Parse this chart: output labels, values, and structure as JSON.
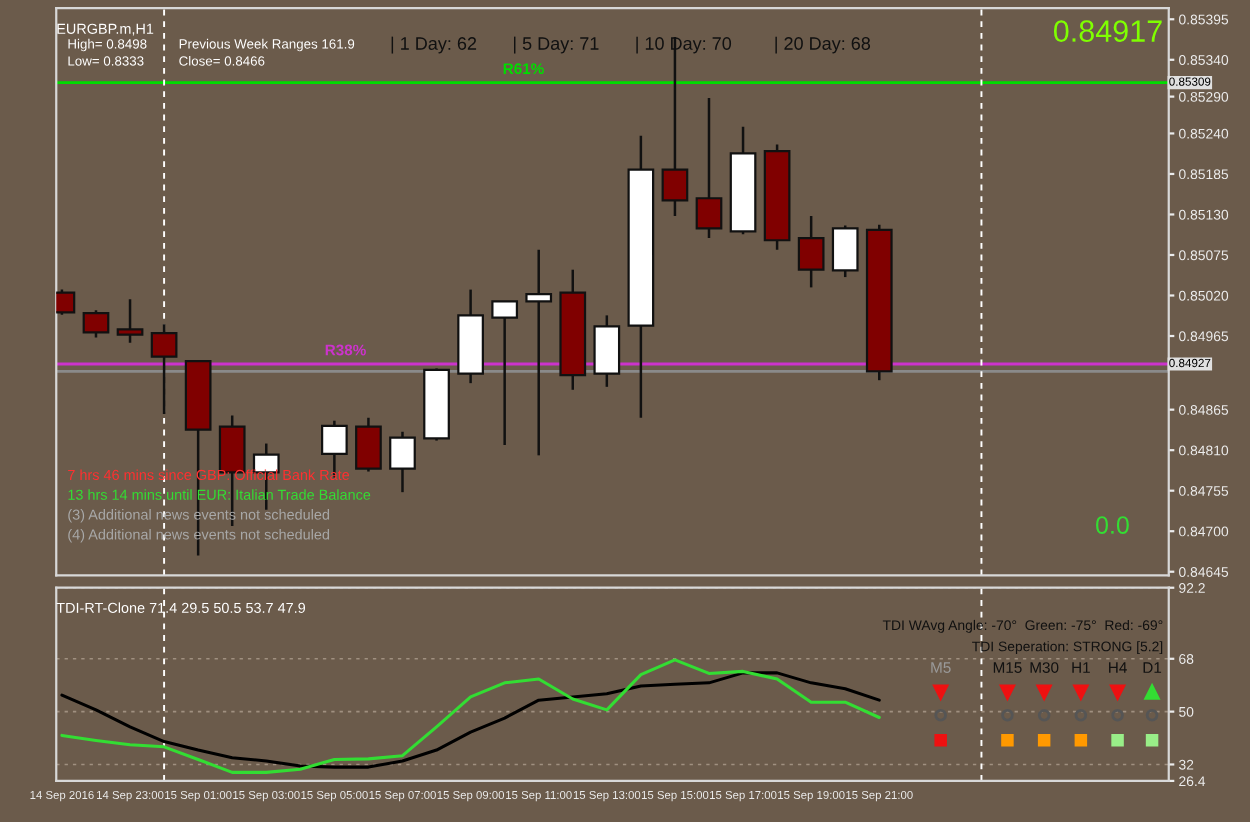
{
  "chart_data": [
    {
      "type": "candlestick",
      "title": "EURGBP.m,H1",
      "x": [
        "2016-09-14T21:00",
        "2016-09-14T22:00",
        "2016-09-14T23:00",
        "2016-09-15T00:00",
        "2016-09-15T01:00",
        "2016-09-15T02:00",
        "2016-09-15T03:00",
        "2016-09-15T05:00",
        "2016-09-15T06:00",
        "2016-09-15T07:00",
        "2016-09-15T08:00",
        "2016-09-15T09:00",
        "2016-09-15T10:00",
        "2016-09-15T11:00",
        "2016-09-15T12:00",
        "2016-09-15T13:00",
        "2016-09-15T14:00",
        "2016-09-15T15:00",
        "2016-09-15T16:00",
        "2016-09-15T17:00",
        "2016-09-15T18:00",
        "2016-09-15T19:00",
        "2016-09-15T20:00",
        "2016-09-15T21:00"
      ],
      "ohlc": [
        [
          0.85024,
          0.85028,
          0.84994,
          0.84997
        ],
        [
          0.84996,
          0.85,
          0.84963,
          0.8497
        ],
        [
          0.84974,
          0.85015,
          0.84956,
          0.84967
        ],
        [
          0.84969,
          0.84981,
          0.84859,
          0.84937
        ],
        [
          0.84931,
          0.84931,
          0.84667,
          0.84838
        ],
        [
          0.84842,
          0.84857,
          0.84707,
          0.8478
        ],
        [
          0.8478,
          0.84819,
          0.84729,
          0.84804
        ],
        [
          0.84805,
          0.8485,
          0.84773,
          0.84843
        ],
        [
          0.84842,
          0.84854,
          0.84781,
          0.84785
        ],
        [
          0.84785,
          0.84835,
          0.84753,
          0.84827
        ],
        [
          0.84826,
          0.84921,
          0.84823,
          0.84919
        ],
        [
          0.84914,
          0.85028,
          0.84901,
          0.84993
        ],
        [
          0.8499,
          0.85012,
          0.84817,
          0.85012
        ],
        [
          0.85012,
          0.85082,
          0.84803,
          0.85022
        ],
        [
          0.85024,
          0.85055,
          0.84892,
          0.84912
        ],
        [
          0.84914,
          0.84993,
          0.84896,
          0.84978
        ],
        [
          0.84979,
          0.85237,
          0.84854,
          0.85191
        ],
        [
          0.85191,
          0.85371,
          0.85128,
          0.85149
        ],
        [
          0.85152,
          0.85288,
          0.85098,
          0.85111
        ],
        [
          0.85107,
          0.85249,
          0.85103,
          0.85213
        ],
        [
          0.85216,
          0.85225,
          0.85082,
          0.85095
        ],
        [
          0.85098,
          0.85128,
          0.85031,
          0.85055
        ],
        [
          0.85054,
          0.85115,
          0.85045,
          0.85111
        ],
        [
          0.85109,
          0.85116,
          0.84905,
          0.84917
        ]
      ],
      "colors": [
        "#800000",
        "#800000",
        "#800000",
        "#800000",
        "#800000",
        "#800000",
        "#ffffff",
        "#ffffff",
        "#800000",
        "#ffffff",
        "#ffffff",
        "#ffffff",
        "#ffffff",
        "#ffffff",
        "#800000",
        "#ffffff",
        "#ffffff",
        "#800000",
        "#800000",
        "#ffffff",
        "#800000",
        "#800000",
        "#ffffff",
        "#800000"
      ],
      "xlim": [
        "2016-09-14T20:50",
        "2016-09-16T05:30"
      ],
      "ylim": [
        0.8464,
        0.8541
      ],
      "yticks": [
        0.85395,
        {
          "value": 0.8534,
          "label": "0.85340"
        },
        {
          "value": 0.8529,
          "label": "0.85290"
        },
        {
          "value": 0.8524,
          "label": "0.85240"
        },
        0.85185,
        {
          "value": 0.8513,
          "label": "0.85130"
        },
        0.85075,
        {
          "value": 0.8502,
          "label": "0.85020"
        },
        0.84965,
        0.84865,
        {
          "value": 0.8481,
          "label": "0.84810"
        },
        0.84755,
        {
          "value": 0.847,
          "label": "0.84700"
        },
        0.84645
      ],
      "tick_labels": "y",
      "ref_lines": [
        {
          "axis": "y",
          "value": 0.85309,
          "label": "R61%",
          "color": "#00dd00"
        },
        {
          "axis": "y",
          "value": 0.84927,
          "label": "R38%",
          "color": "#cc33cc"
        },
        {
          "axis": "y",
          "value": 0.84917,
          "color": "#8a8a8a"
        },
        {
          "axis": "x",
          "value": "2016-09-15T00:00",
          "color": "#ffffff",
          "line_style": "dashed"
        },
        {
          "axis": "x",
          "value": "2016-09-16T00:00",
          "color": "#ffffff",
          "line_style": "dashed"
        }
      ],
      "annotations": [
        "High= 0.8498",
        "Previous Week Ranges 161.9",
        "Low= 0.8333",
        "Close= 0.8466",
        "| 1 Day: 62",
        "| 5 Day: 71",
        "| 10 Day: 70",
        "| 20 Day: 68",
        "0.84917",
        "0.0",
        "7 hrs 46 mins since GBP: Official Bank Rate",
        "13 hrs 14 mins until EUR: Italian Trade Balance",
        "(3) Additional news events not scheduled",
        "(4) Additional news events not scheduled",
        {
          "text": "0.85309",
          "x": "2016-09-16T05:30",
          "y": 0.85309
        },
        {
          "text": "0.84927",
          "x": "2016-09-16T05:30",
          "y": 0.84927
        }
      ]
    },
    {
      "type": "line",
      "title": "TDI-RT-Clone 71.4 29.5 50.5 53.7 47.9",
      "x": [
        "2016-09-14T21:00",
        "2016-09-14T22:00",
        "2016-09-14T23:00",
        "2016-09-15T00:00",
        "2016-09-15T01:00",
        "2016-09-15T02:00",
        "2016-09-15T03:00",
        "2016-09-15T04:00",
        "2016-09-15T05:00",
        "2016-09-15T06:00",
        "2016-09-15T07:00",
        "2016-09-15T08:00",
        "2016-09-15T09:00",
        "2016-09-15T10:00",
        "2016-09-15T11:00",
        "2016-09-15T12:00",
        "2016-09-15T13:00",
        "2016-09-15T14:00",
        "2016-09-15T15:00",
        "2016-09-15T16:00",
        "2016-09-15T17:00",
        "2016-09-15T18:00",
        "2016-09-15T19:00",
        "2016-09-15T20:00",
        "2016-09-15T21:00"
      ],
      "series": [
        {
          "color": "#000000",
          "values": [
            55.6,
            50.6,
            44.8,
            39.8,
            36.9,
            34.3,
            33.2,
            31.5,
            31.1,
            31.1,
            33.2,
            36.9,
            43.0,
            47.8,
            53.9,
            55.0,
            56.1,
            58.7,
            59.3,
            59.8,
            63.2,
            63.2,
            59.8,
            57.8,
            53.9
          ]
        },
        {
          "color": "#33dd33",
          "values": [
            41.9,
            40.2,
            38.7,
            38.0,
            33.7,
            29.3,
            29.3,
            30.4,
            33.7,
            33.9,
            35.0,
            44.8,
            55.0,
            59.8,
            61.1,
            54.3,
            50.6,
            62.6,
            67.6,
            63.0,
            63.7,
            61.1,
            53.2,
            53.2,
            48.0
          ]
        }
      ],
      "xlim": [
        "2016-09-14T20:50",
        "2016-09-16T05:30"
      ],
      "xticks": [
        {
          "value": "2016-09-14T21:00",
          "label": "14 Sep 2016"
        },
        {
          "value": "2016-09-14T23:00",
          "label": "14 Sep 23:00"
        },
        {
          "value": "2016-09-15T01:00",
          "label": "15 Sep 01:00"
        },
        {
          "value": "2016-09-15T03:00",
          "label": "15 Sep 03:00"
        },
        {
          "value": "2016-09-15T05:00",
          "label": "15 Sep 05:00"
        },
        {
          "value": "2016-09-15T07:00",
          "label": "15 Sep 07:00"
        },
        {
          "value": "2016-09-15T09:00",
          "label": "15 Sep 09:00"
        },
        {
          "value": "2016-09-15T11:00",
          "label": "15 Sep 11:00"
        },
        {
          "value": "2016-09-15T13:00",
          "label": "15 Sep 13:00"
        },
        {
          "value": "2016-09-15T15:00",
          "label": "15 Sep 15:00"
        },
        {
          "value": "2016-09-15T17:00",
          "label": "15 Sep 17:00"
        },
        {
          "value": "2016-09-15T19:00",
          "label": "15 Sep 19:00"
        },
        {
          "value": "2016-09-15T21:00",
          "label": "15 Sep 21:00"
        }
      ],
      "ylim": [
        26.4,
        92.2
      ],
      "yticks": [
        92.2,
        68,
        50,
        32,
        26.4
      ],
      "grid": "y",
      "ref_lines": [
        {
          "axis": "x",
          "value": "2016-09-15T00:00",
          "color": "#ffffff",
          "line_style": "dashed"
        },
        {
          "axis": "x",
          "value": "2016-09-16T00:00",
          "color": "#ffffff",
          "line_style": "dashed"
        }
      ],
      "annotations": [
        "TDI WAvg Angle: -70°  Green: -75°  Red: -69°",
        "TDI Seperation: STRONG [5.2]",
        "M5",
        "M15",
        "M30",
        "H1",
        "H4",
        "D1"
      ]
    }
  ]
}
